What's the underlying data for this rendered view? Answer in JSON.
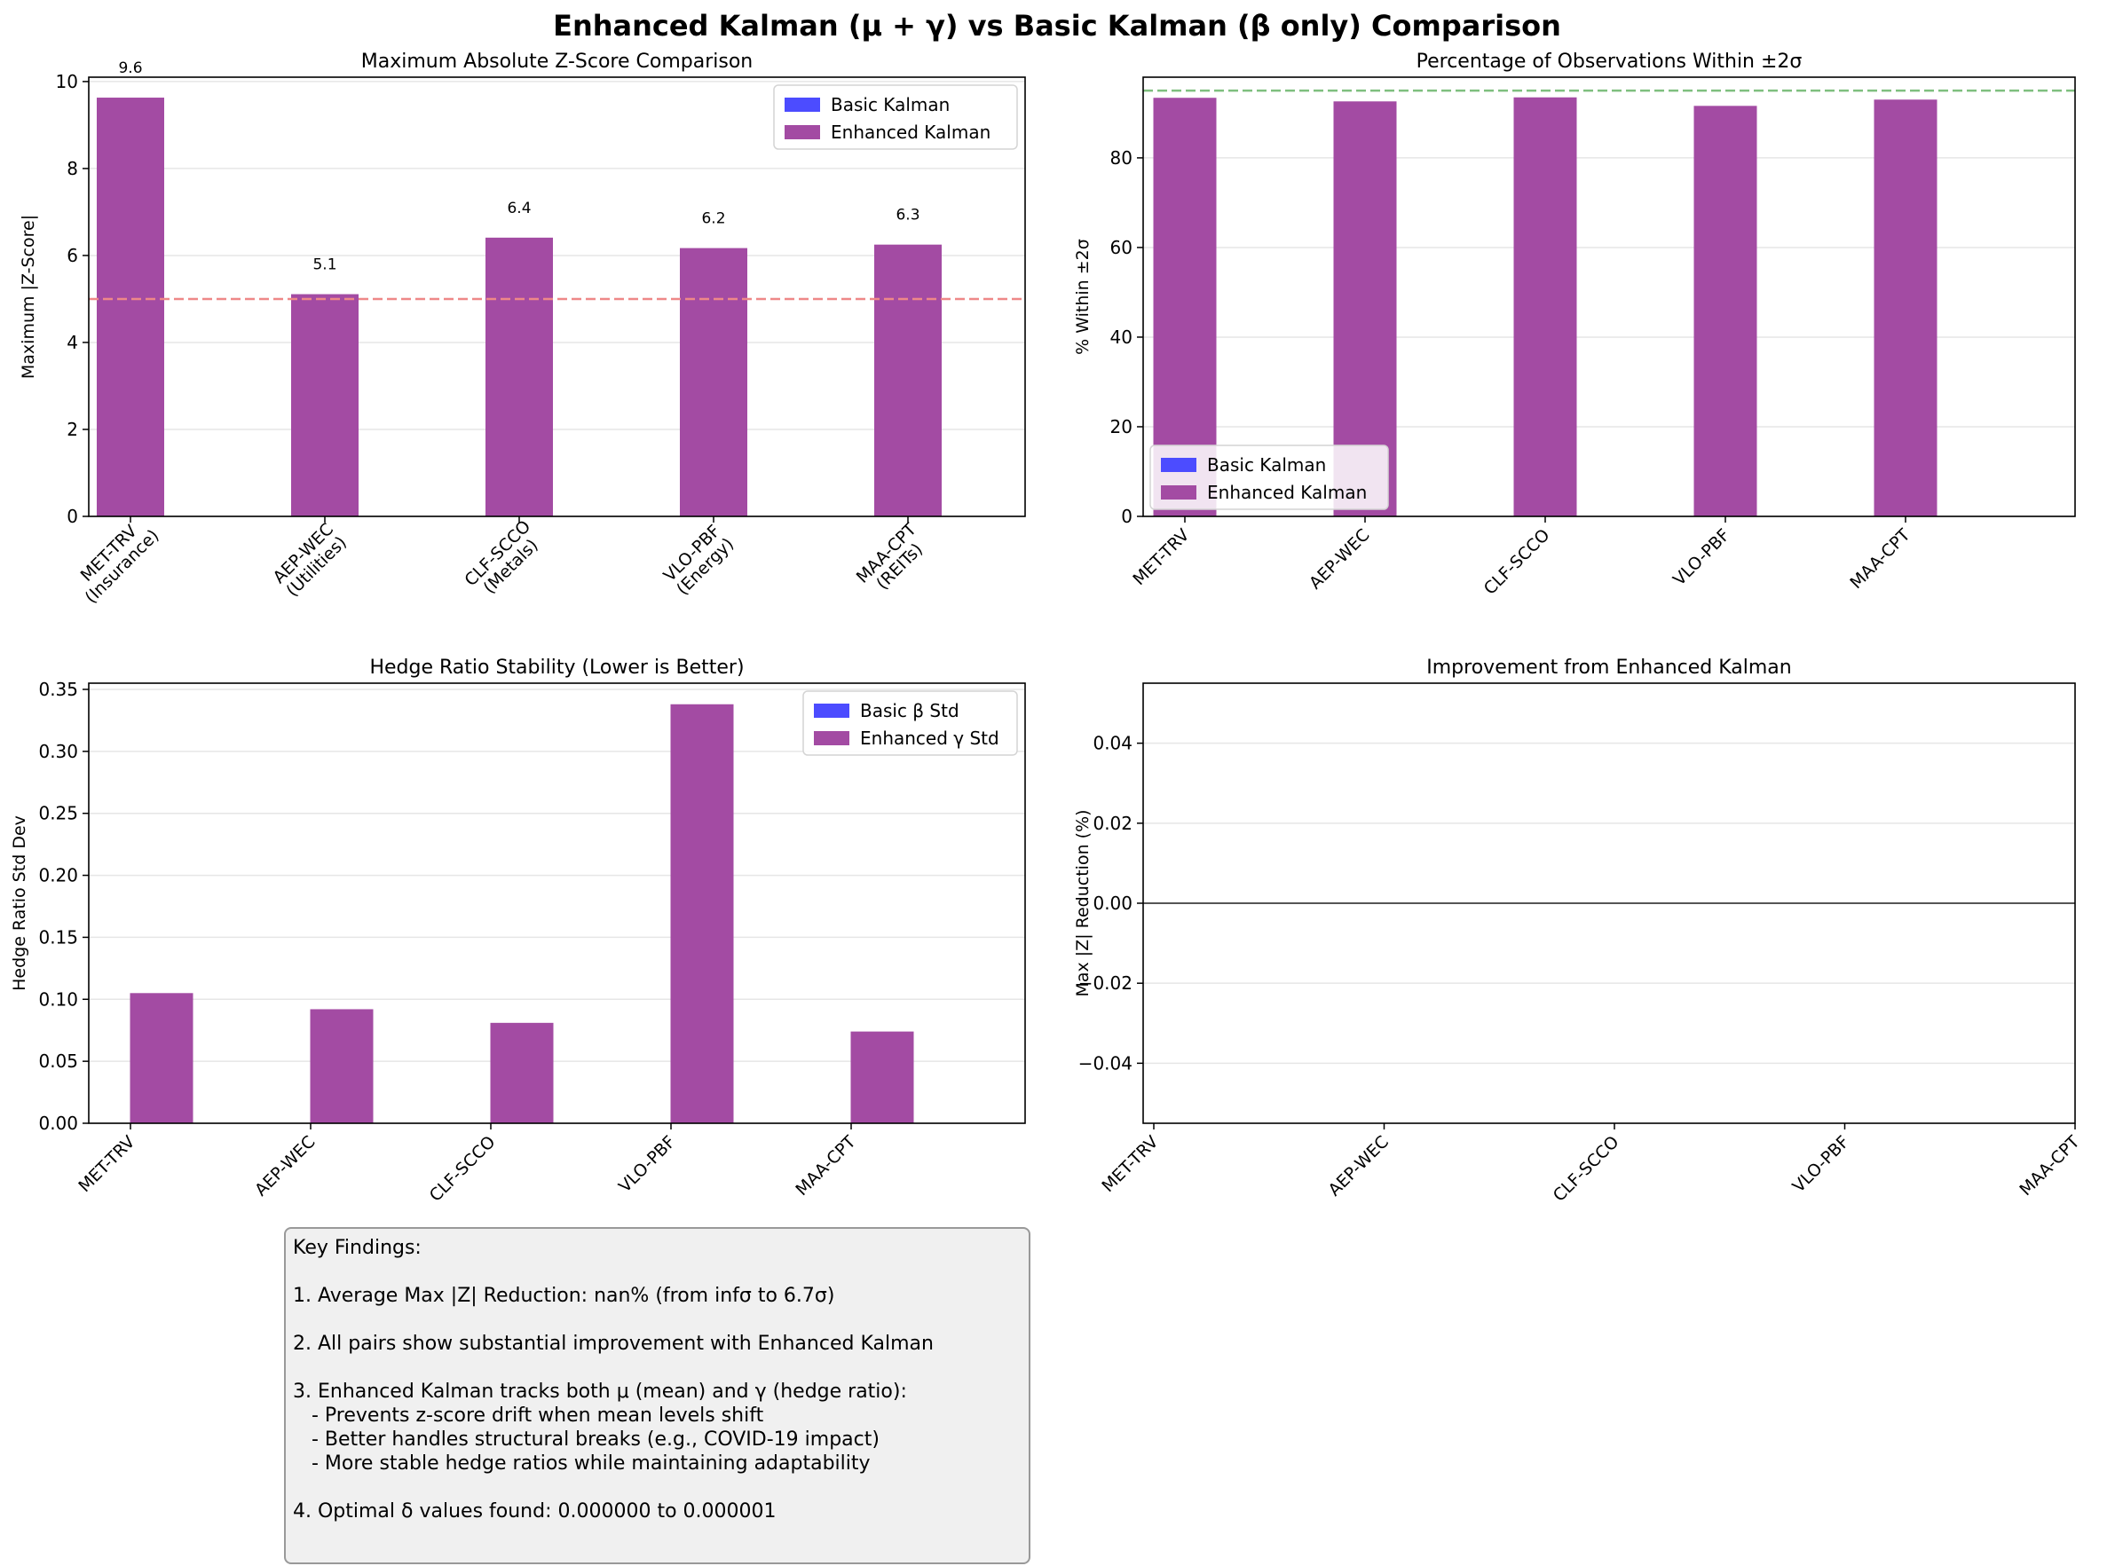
{
  "figure": {
    "suptitle": "Enhanced Kalman (μ + γ) vs Basic Kalman (β only) Comparison",
    "colors": {
      "basic": "#4c4cff",
      "enhanced": "#a34ba3",
      "threshold": "#ee8888",
      "target": "#7fbf7f"
    }
  },
  "chart_data": [
    {
      "type": "bar",
      "title": "Maximum Absolute Z-Score Comparison",
      "ylabel": "Maximum |Z-Score|",
      "categories": [
        "MET-TRV\n(Insurance)",
        "AEP-WEC\n(Utilities)",
        "CLF-SCCO\n(Metals)",
        "VLO-PBF\n(Energy)",
        "MAA-CPT\n(REITs)"
      ],
      "series": [
        {
          "name": "Basic Kalman",
          "values": [
            null,
            null,
            null,
            null,
            null
          ]
        },
        {
          "name": "Enhanced Kalman",
          "values": [
            9.63,
            5.11,
            6.41,
            6.17,
            6.25
          ]
        }
      ],
      "data_labels": [
        "9.6",
        "5.1",
        "6.4",
        "6.2",
        "6.3"
      ],
      "ylim": [
        0,
        10.1
      ],
      "yticks": [
        "0",
        "2",
        "4",
        "6",
        "8",
        "10"
      ],
      "reference_line": 5,
      "legend": "top-right",
      "grid": "y"
    },
    {
      "type": "bar",
      "title": "Percentage of Observations Within ±2σ",
      "ylabel": "% Within ±2σ",
      "categories": [
        "MET-TRV",
        "AEP-WEC",
        "CLF-SCCO",
        "VLO-PBF",
        "MAA-CPT"
      ],
      "series": [
        {
          "name": "Basic Kalman",
          "values": [
            null,
            null,
            null,
            null,
            null
          ]
        },
        {
          "name": "Enhanced Kalman",
          "values": [
            93.4,
            92.6,
            93.5,
            91.6,
            93.0
          ]
        }
      ],
      "ylim": [
        0,
        98
      ],
      "yticks": [
        "0",
        "20",
        "40",
        "60",
        "80"
      ],
      "reference_line": 95,
      "legend": "bottom-left",
      "grid": "y"
    },
    {
      "type": "bar",
      "title": "Hedge Ratio Stability (Lower is Better)",
      "ylabel": "Hedge Ratio Std Dev",
      "categories": [
        "MET-TRV",
        "AEP-WEC",
        "CLF-SCCO",
        "VLO-PBF",
        "MAA-CPT"
      ],
      "series": [
        {
          "name": "Basic β Std",
          "values": [
            null,
            null,
            null,
            null,
            null
          ]
        },
        {
          "name": "Enhanced γ Std",
          "values": [
            0.105,
            0.092,
            0.081,
            0.338,
            0.074
          ]
        }
      ],
      "ylim": [
        0,
        0.355
      ],
      "yticks": [
        "0.00",
        "0.05",
        "0.10",
        "0.15",
        "0.20",
        "0.25",
        "0.30",
        "0.35"
      ],
      "legend": "top-right",
      "grid": "y"
    },
    {
      "type": "bar",
      "title": "Improvement from Enhanced Kalman",
      "ylabel": "Max |Z| Reduction (%)",
      "categories": [
        "MET-TRV",
        "AEP-WEC",
        "CLF-SCCO",
        "VLO-PBF",
        "MAA-CPT"
      ],
      "series": [
        {
          "name": "",
          "values": [
            null,
            null,
            null,
            null,
            null
          ]
        }
      ],
      "ylim": [
        -0.055,
        0.055
      ],
      "yticks": [
        "−0.04",
        "−0.02",
        "0.00",
        "0.02",
        "0.04"
      ],
      "reference_line": 0,
      "grid": "y"
    }
  ],
  "findings": {
    "lines": [
      "Key Findings:",
      "",
      "1. Average Max |Z| Reduction: nan% (from infσ to 6.7σ)",
      "",
      "2. All pairs show substantial improvement with Enhanced Kalman",
      "",
      "3. Enhanced Kalman tracks both μ (mean) and γ (hedge ratio):",
      "   - Prevents z-score drift when mean levels shift",
      "   - Better handles structural breaks (e.g., COVID-19 impact)",
      "   - More stable hedge ratios while maintaining adaptability",
      "",
      "4. Optimal δ values found: 0.000000 to 0.000001"
    ]
  }
}
